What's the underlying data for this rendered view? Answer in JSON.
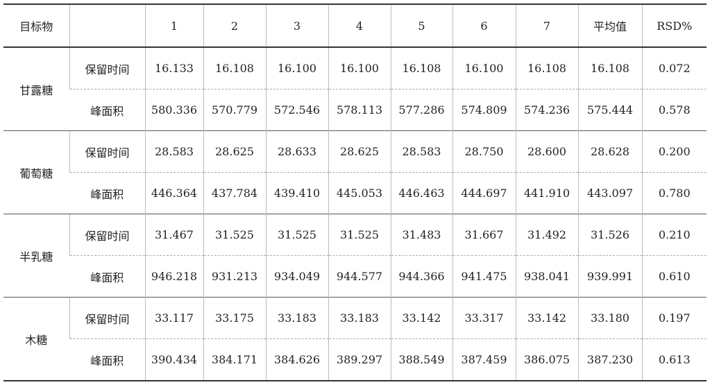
{
  "table": {
    "header": {
      "target": "目标物",
      "columns": [
        "1",
        "2",
        "3",
        "4",
        "5",
        "6",
        "7",
        "平均值",
        "RSD%"
      ]
    },
    "groups": [
      {
        "name": "甘露糖",
        "rows": [
          {
            "label": "保留时间",
            "values": [
              "16.133",
              "16.108",
              "16.100",
              "16.100",
              "16.108",
              "16.100",
              "16.108",
              "16.108",
              "0.072"
            ]
          },
          {
            "label": "峰面积",
            "values": [
              "580.336",
              "570.779",
              "572.546",
              "578.113",
              "577.286",
              "574.809",
              "574.236",
              "575.444",
              "0.578"
            ]
          }
        ]
      },
      {
        "name": "葡萄糖",
        "rows": [
          {
            "label": "保留时间",
            "values": [
              "28.583",
              "28.625",
              "28.633",
              "28.625",
              "28.583",
              "28.750",
              "28.600",
              "28.628",
              "0.200"
            ]
          },
          {
            "label": "峰面积",
            "values": [
              "446.364",
              "437.784",
              "439.410",
              "445.053",
              "446.463",
              "444.697",
              "441.910",
              "443.097",
              "0.780"
            ]
          }
        ]
      },
      {
        "name": "半乳糖",
        "rows": [
          {
            "label": "保留时间",
            "values": [
              "31.467",
              "31.525",
              "31.525",
              "31.525",
              "31.483",
              "31.667",
              "31.492",
              "31.526",
              "0.210"
            ]
          },
          {
            "label": "峰面积",
            "values": [
              "946.218",
              "931.213",
              "934.049",
              "944.577",
              "944.366",
              "941.475",
              "938.041",
              "939.991",
              "0.610"
            ]
          }
        ]
      },
      {
        "name": "木糖",
        "rows": [
          {
            "label": "保留时间",
            "values": [
              "33.117",
              "33.175",
              "33.183",
              "33.183",
              "33.142",
              "33.317",
              "33.142",
              "33.180",
              "0.197"
            ]
          },
          {
            "label": "峰面积",
            "values": [
              "390.434",
              "384.171",
              "384.626",
              "389.297",
              "388.549",
              "387.459",
              "386.075",
              "387.230",
              "0.613"
            ]
          }
        ]
      }
    ]
  }
}
